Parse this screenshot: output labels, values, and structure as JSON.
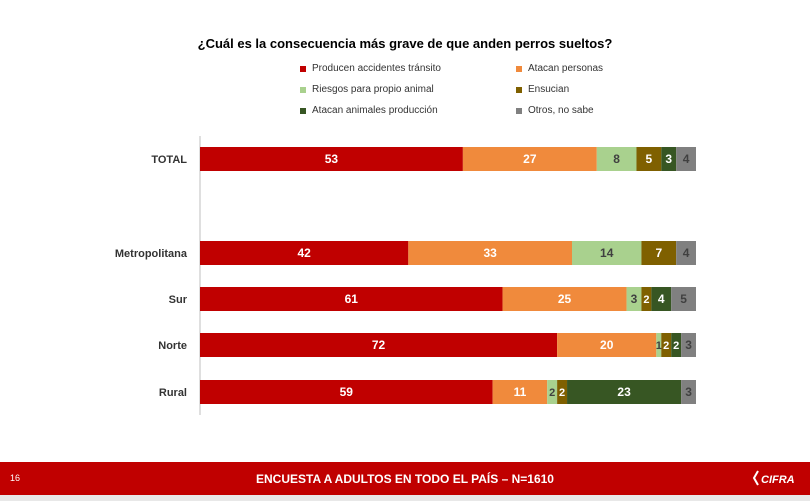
{
  "chart_data": {
    "type": "bar",
    "orientation": "horizontal",
    "stacked": true,
    "title": "¿Cuál es la consecuencia más grave de que anden perros sueltos?",
    "categories": [
      "TOTAL",
      "Metropolitana",
      "Sur",
      "Norte",
      "Rural"
    ],
    "series": [
      {
        "name": "Producen accidentes tránsito",
        "color": "#c00000",
        "values": [
          53,
          42,
          61,
          72,
          59
        ]
      },
      {
        "name": "Atacan personas",
        "color": "#f08a3c",
        "values": [
          27,
          33,
          25,
          20,
          11
        ]
      },
      {
        "name": "Riesgos para propio animal",
        "color": "#a9d18e",
        "values": [
          8,
          14,
          3,
          1,
          2
        ]
      },
      {
        "name": "Ensucian",
        "color": "#7f6000",
        "values": [
          5,
          7,
          2,
          2,
          2
        ]
      },
      {
        "name": "Atacan animales producción",
        "color": "#375623",
        "values": [
          3,
          0,
          4,
          2,
          23
        ]
      },
      {
        "name": "Otros, no sabe",
        "color": "#808080",
        "values": [
          4,
          4,
          5,
          3,
          3
        ]
      }
    ],
    "label_colors": [
      "#ffffff",
      "#ffffff",
      "#404040",
      "#ffffff",
      "#ffffff",
      "#404040"
    ],
    "xlim": [
      0,
      100
    ],
    "legend_position": "top"
  },
  "footer": {
    "page_number": "16",
    "text": "ENCUESTA A ADULTOS EN TODO EL PAÍS – N=1610",
    "logo_text": "CIFRA"
  }
}
